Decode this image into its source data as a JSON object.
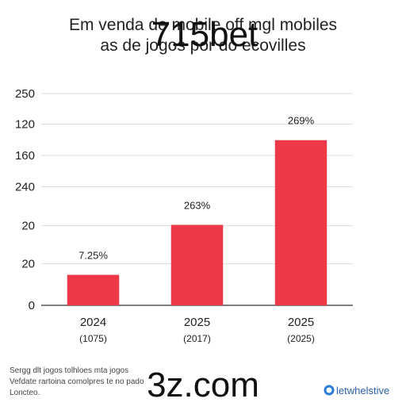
{
  "chart_data": {
    "type": "bar",
    "title": [
      "Em venda de mobile off mgl mobiles",
      "as de jogos por do ecovilles"
    ],
    "categories": [
      "2024",
      "2025",
      "2025"
    ],
    "category_sublabels": [
      "(1075)",
      "(2017)",
      "(2025)"
    ],
    "values": [
      36,
      95,
      195
    ],
    "annotations": [
      "7.25%",
      "263%",
      "269%"
    ],
    "color": "#ec3847",
    "ylim": [
      0,
      250
    ],
    "yticks": [
      0,
      {
        "value": 49,
        "label": "20"
      },
      {
        "value": 94,
        "label": "20"
      },
      {
        "value": 140,
        "label": "240"
      },
      {
        "value": 177,
        "label": "160"
      },
      {
        "value": 214,
        "label": "120"
      },
      250
    ],
    "grid": true,
    "watermarks": [
      "715bet",
      "3z.com"
    ],
    "footnote": [
      "Sergg dlt jogos tolhloes mta jogos",
      "Vefdate rartoina comolpres te no pado",
      "Loncteo."
    ],
    "brand": "letwhelstive"
  }
}
